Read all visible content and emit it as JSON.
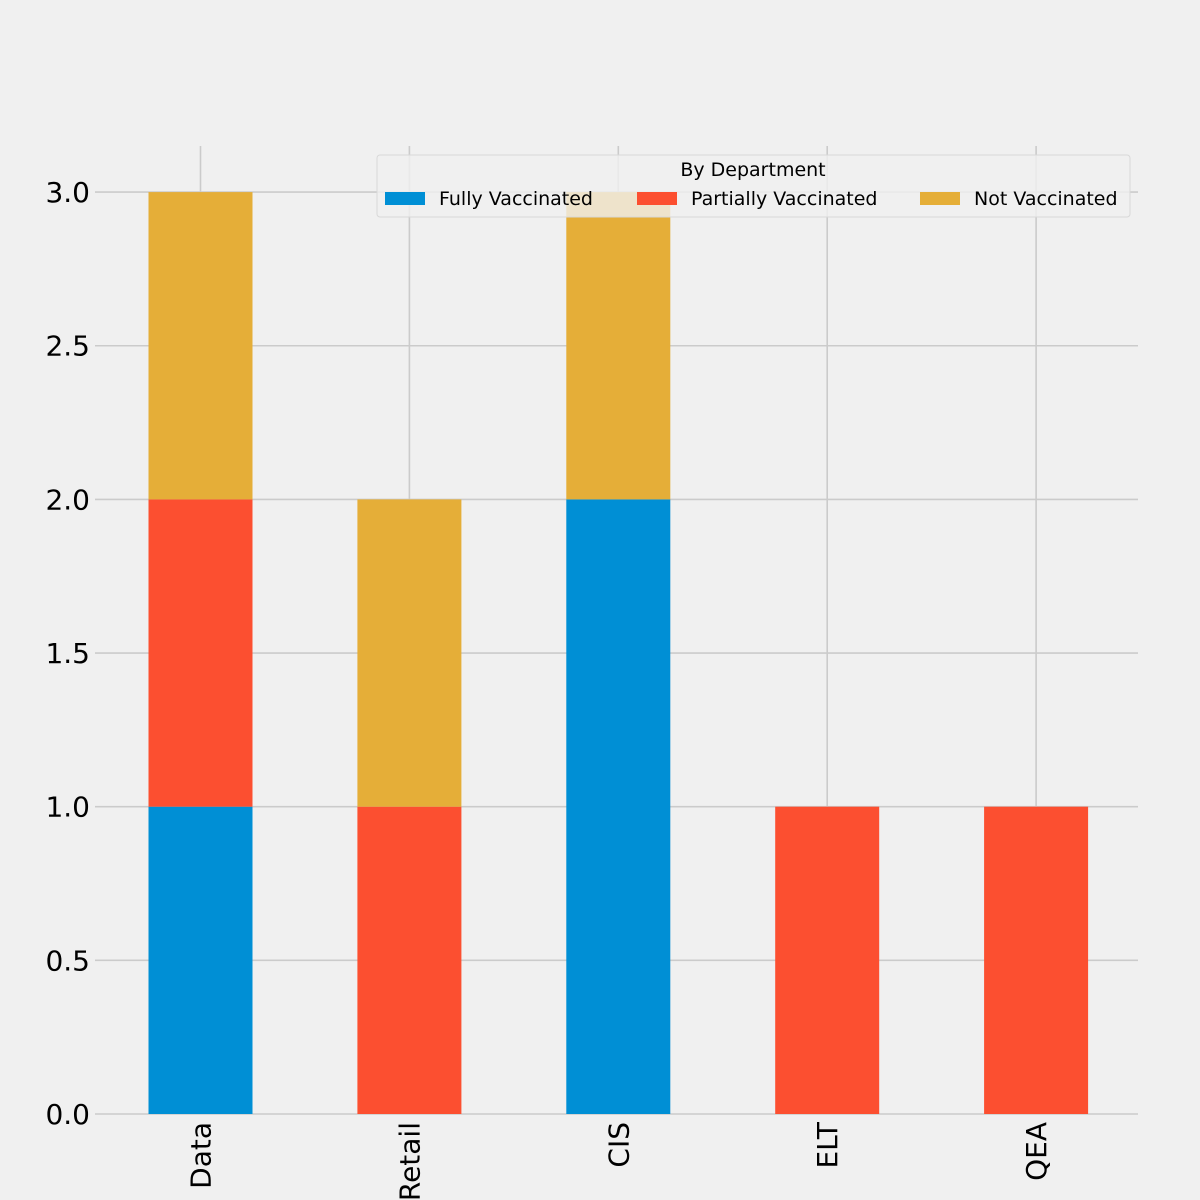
{
  "chart_data": {
    "type": "bar",
    "stacked": true,
    "title": "",
    "xlabel": "",
    "ylabel": "",
    "categories": [
      "Data",
      "Retail",
      "CIS",
      "ELT",
      "QEA"
    ],
    "series": [
      {
        "name": "Fully Vaccinated",
        "color": "#008fd5",
        "values": [
          1,
          0,
          2,
          0,
          0
        ]
      },
      {
        "name": "Partially Vaccinated",
        "color": "#fc4f30",
        "values": [
          1,
          1,
          0,
          1,
          1
        ]
      },
      {
        "name": "Not Vaccinated",
        "color": "#e5ae38",
        "values": [
          1,
          1,
          1,
          0,
          0
        ]
      }
    ],
    "ylim": [
      0,
      3.15
    ],
    "yticks": [
      "0.0",
      "0.5",
      "1.0",
      "1.5",
      "2.0",
      "2.5",
      "3.0"
    ],
    "grid": true,
    "legend": {
      "title": "By Department",
      "placement": "top-right",
      "columns": 3
    },
    "colors": {
      "background": "#f0f0f0",
      "grid": "#cbcbcb",
      "text": "#000000"
    }
  }
}
